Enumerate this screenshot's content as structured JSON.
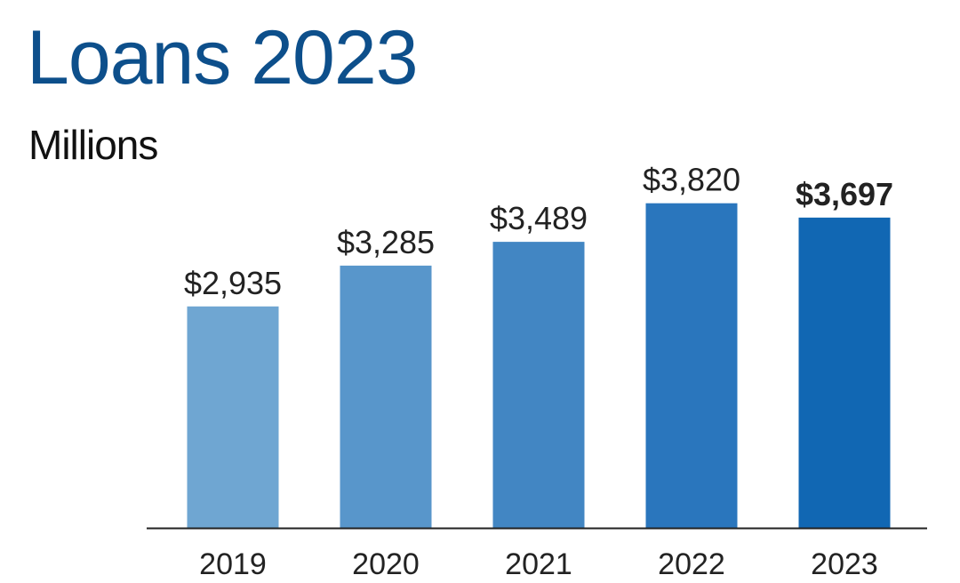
{
  "chart_data": {
    "type": "bar",
    "title": "Loans 2023",
    "subtitle": "Millions",
    "xlabel": "",
    "ylabel": "",
    "categories": [
      "2019",
      "2020",
      "2021",
      "2022",
      "2023"
    ],
    "values": [
      2935,
      3285,
      3489,
      3820,
      3697
    ],
    "data_labels": [
      "$2,935",
      "$3,285",
      "$3,489",
      "$3,820",
      "$3,697"
    ],
    "highlight_index": 4,
    "colors": [
      "#6fa6d2",
      "#5896cb",
      "#4286c3",
      "#2a76bd",
      "#1167b3"
    ],
    "ylim": [
      1035,
      4420
    ],
    "grid": false
  }
}
